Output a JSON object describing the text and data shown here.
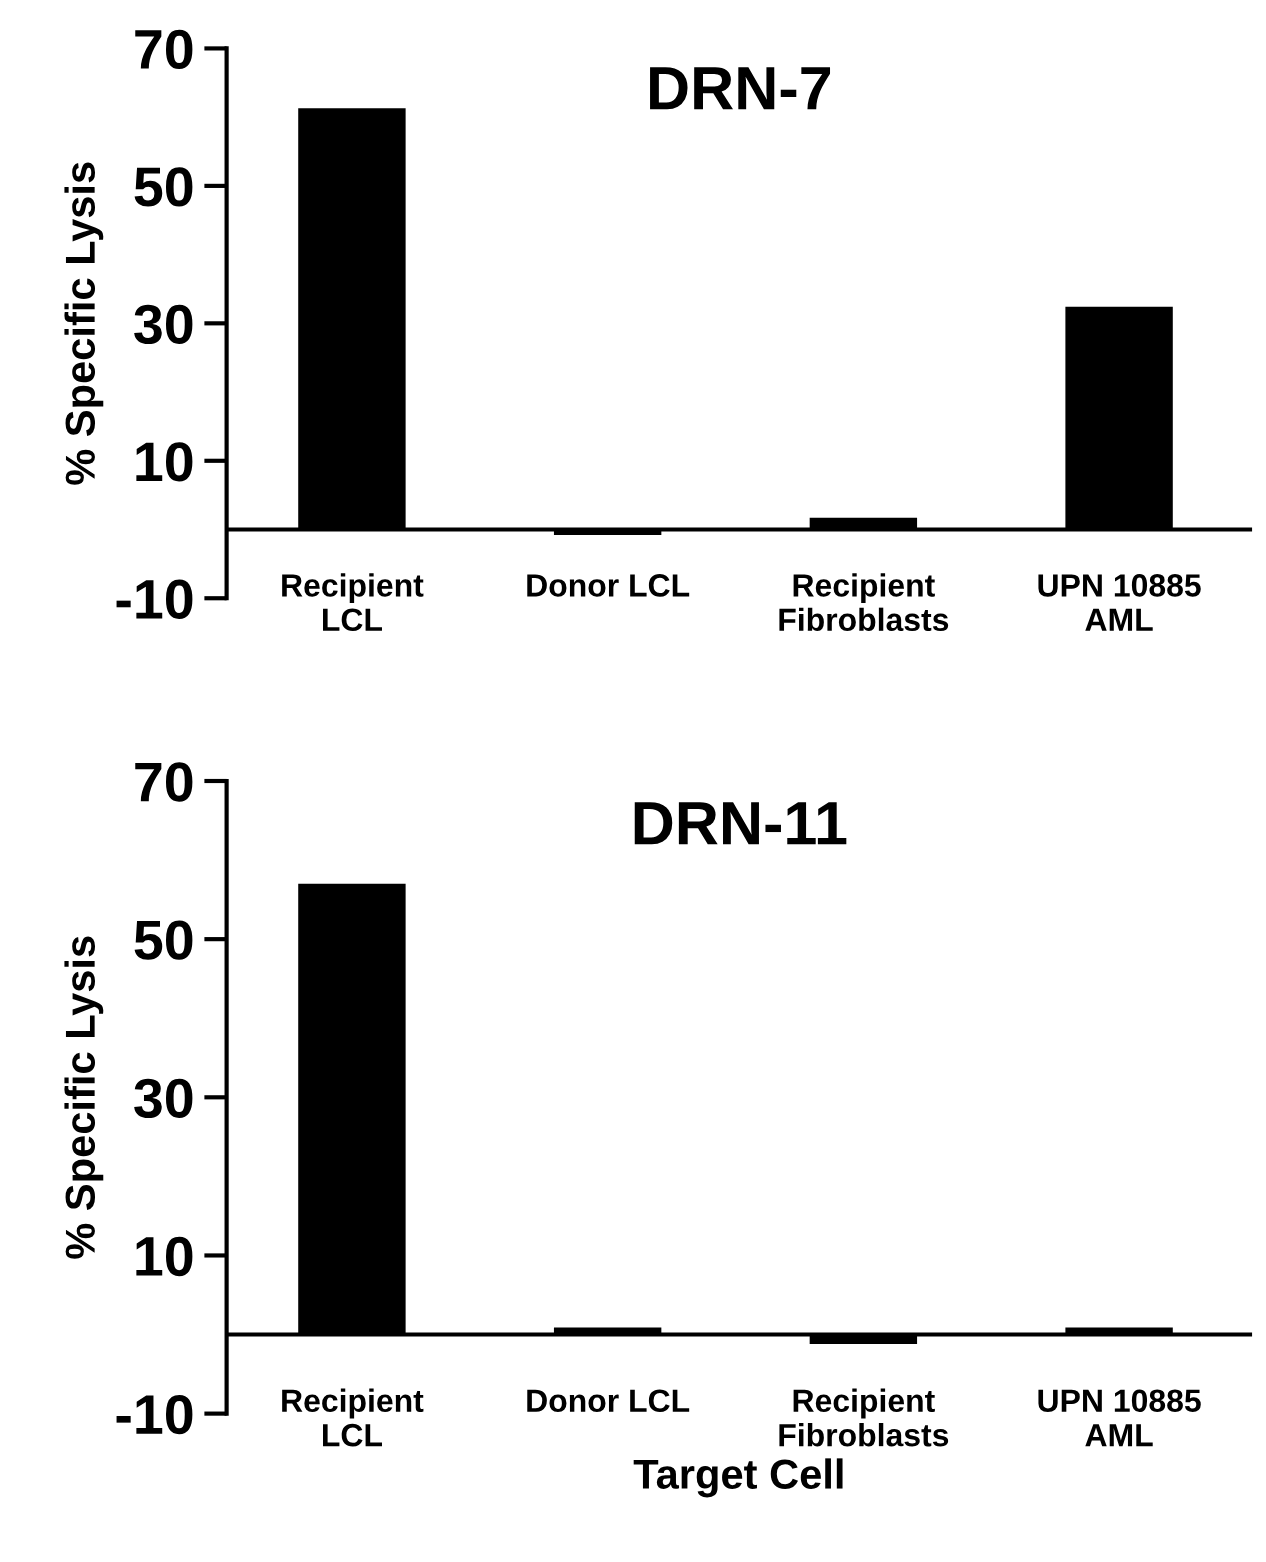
{
  "chart_data": [
    {
      "type": "bar",
      "title": "DRN-7",
      "ylabel": "% Specific Lysis",
      "categories": [
        "Recipient\nLCL",
        "Donor LCL",
        "Recipient\nFibroblasts",
        "UPN 10885\nAML"
      ],
      "values": [
        61.3,
        -0.8,
        1.7,
        32.4
      ],
      "color": "#000000",
      "ylim": [
        -10,
        70
      ],
      "yticks": [
        -10,
        10,
        30,
        50,
        70
      ],
      "grid": false
    },
    {
      "type": "bar",
      "title": "DRN-11",
      "ylabel": "% Specific Lysis",
      "xlabel": "Target Cell",
      "categories": [
        "Recipient\nLCL",
        "Donor LCL",
        "Recipient\nFibroblasts",
        "UPN 10885\nAML"
      ],
      "values": [
        57,
        0.9,
        -1.2,
        0.9
      ],
      "color": "#000000",
      "ylim": [
        -10,
        70
      ],
      "yticks": [
        -10,
        10,
        30,
        50,
        70
      ],
      "grid": false
    }
  ]
}
